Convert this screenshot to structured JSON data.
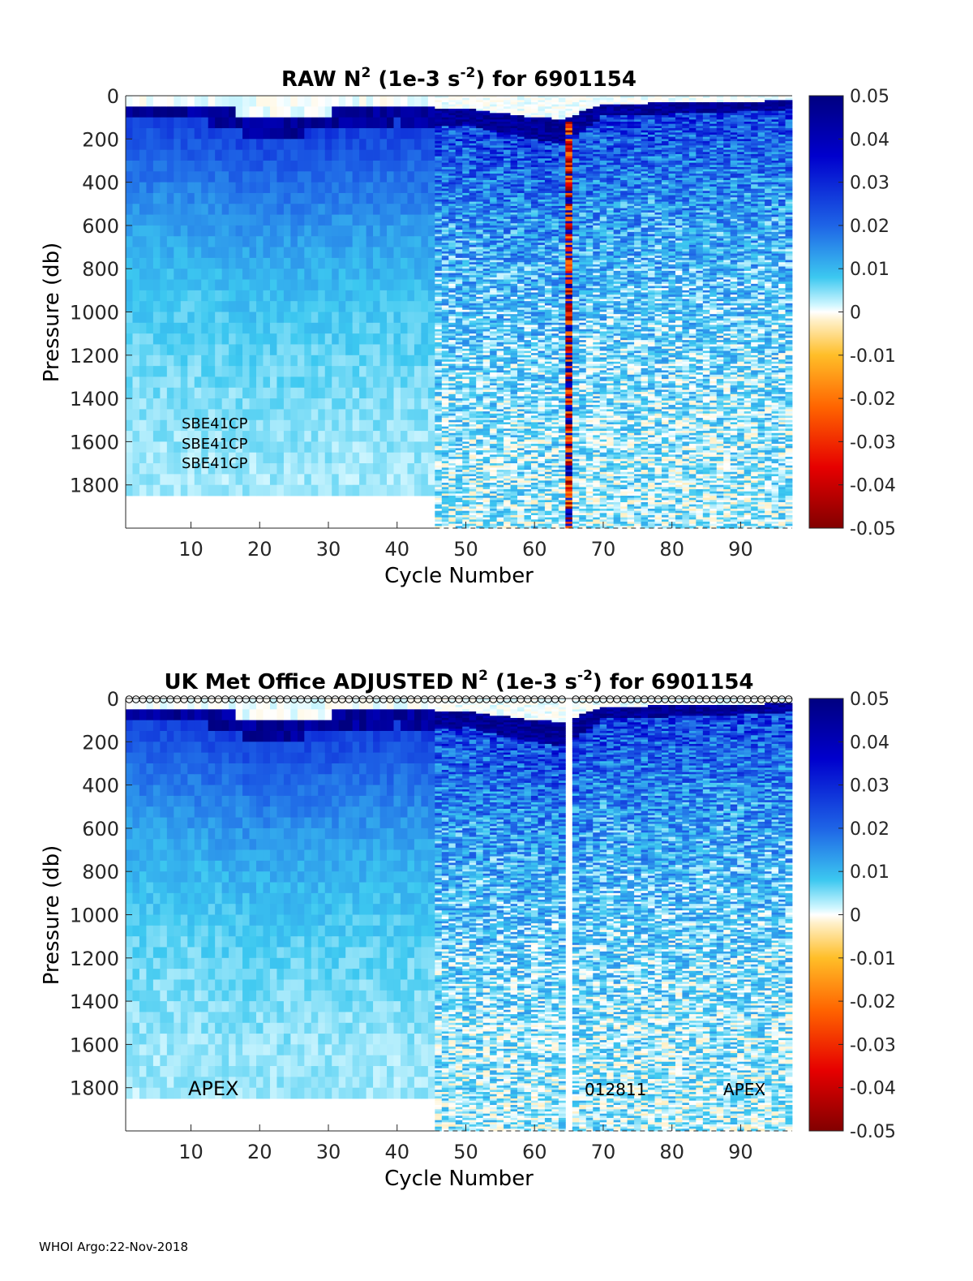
{
  "chart_data": [
    {
      "type": "heatmap",
      "title_prefix": "RAW N",
      "title_unit": "(1e-3 s",
      "title_suffix": ") for 6901154",
      "sup_main": "2",
      "sup_unit": "-2",
      "xlabel": "Cycle Number",
      "ylabel": "Pressure (db)",
      "xlim": [
        1,
        97
      ],
      "ylim": [
        2000,
        0
      ],
      "x_ticks": [
        "10",
        "20",
        "30",
        "40",
        "50",
        "60",
        "70",
        "80",
        "90"
      ],
      "y_ticks": [
        "0",
        "200",
        "400",
        "600",
        "800",
        "1000",
        "1200",
        "1400",
        "1600",
        "1800"
      ],
      "colorbar": {
        "min": -0.05,
        "max": 0.05,
        "ticks": [
          "0.05",
          "0.04",
          "0.03",
          "0.02",
          "0.01",
          "0",
          "-0.01",
          "-0.02",
          "-0.03",
          "-0.04",
          "-0.05"
        ]
      },
      "annotations": [
        "SBE41CP",
        "SBE41CP",
        "SBE41CP"
      ],
      "coarse_profile_cycles": [
        1,
        45
      ],
      "coarse_max_pressure": 1850,
      "anomalous_cycle": 65,
      "mixed_layer_cycles": [
        1,
        10,
        20,
        30,
        40,
        45,
        50,
        60,
        64,
        70,
        80,
        90,
        97
      ],
      "mixed_layer_depth_db": [
        60,
        80,
        170,
        140,
        100,
        120,
        110,
        180,
        200,
        70,
        60,
        50,
        40
      ]
    },
    {
      "type": "heatmap",
      "title_prefix": "UK Met Office  ADJUSTED N",
      "title_unit": "(1e-3 s",
      "title_suffix": ") for 6901154",
      "sup_main": "2",
      "sup_unit": "-2",
      "xlabel": "Cycle Number",
      "ylabel": "Pressure (db)",
      "xlim": [
        1,
        97
      ],
      "ylim": [
        2000,
        0
      ],
      "x_ticks": [
        "10",
        "20",
        "30",
        "40",
        "50",
        "60",
        "70",
        "80",
        "90"
      ],
      "y_ticks": [
        "0",
        "200",
        "400",
        "600",
        "800",
        "1000",
        "1200",
        "1400",
        "1600",
        "1800"
      ],
      "colorbar": {
        "min": -0.05,
        "max": 0.05,
        "ticks": [
          "0.05",
          "0.04",
          "0.03",
          "0.02",
          "0.01",
          "0",
          "-0.01",
          "-0.02",
          "-0.03",
          "-0.04",
          "-0.05"
        ]
      },
      "annotations": [
        "APEX",
        "012811",
        "APEX"
      ],
      "coarse_profile_cycles": [
        1,
        45
      ],
      "coarse_max_pressure": 1850,
      "missing_cycle": 65,
      "surface_markers": "circle per cycle at 0 db",
      "mixed_layer_cycles": [
        1,
        10,
        20,
        30,
        40,
        45,
        50,
        60,
        64,
        70,
        80,
        90,
        97
      ],
      "mixed_layer_depth_db": [
        60,
        80,
        170,
        140,
        100,
        120,
        110,
        180,
        200,
        70,
        60,
        50,
        40
      ]
    }
  ],
  "footer": "WHOI Argo:22-Nov-2018"
}
